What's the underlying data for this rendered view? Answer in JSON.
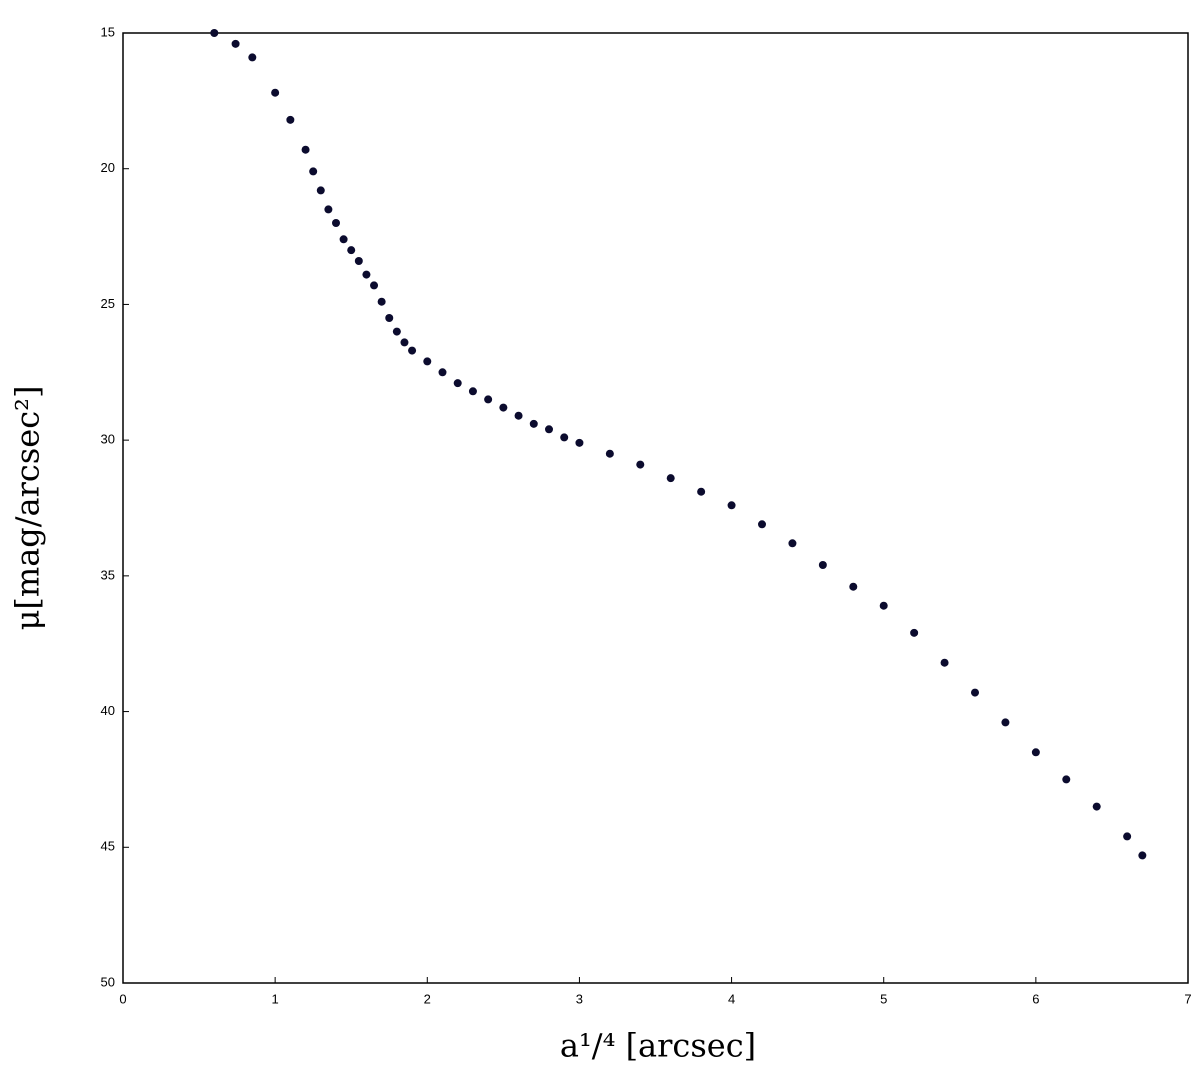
{
  "chart_data": {
    "type": "scatter",
    "xlabel": "a¹/⁴ [arcsec]",
    "ylabel": "μ[mag/arcsec²]",
    "x": [
      0.6,
      0.74,
      0.85,
      1.0,
      1.1,
      1.2,
      1.25,
      1.3,
      1.35,
      1.4,
      1.45,
      1.5,
      1.55,
      1.6,
      1.65,
      1.7,
      1.75,
      1.8,
      1.85,
      1.9,
      2.0,
      2.1,
      2.2,
      2.3,
      2.4,
      2.5,
      2.6,
      2.7,
      2.8,
      2.9,
      3.0,
      3.2,
      3.4,
      3.6,
      3.8,
      4.0,
      4.2,
      4.4,
      4.6,
      4.8,
      5.0,
      5.2,
      5.4,
      5.6,
      5.8,
      6.0,
      6.2,
      6.4,
      6.6,
      6.7
    ],
    "values": [
      15.0,
      15.4,
      15.9,
      17.2,
      18.2,
      19.3,
      20.1,
      20.8,
      21.5,
      22.0,
      22.6,
      23.0,
      23.4,
      23.9,
      24.3,
      24.9,
      25.5,
      26.0,
      26.4,
      26.7,
      27.1,
      27.5,
      27.9,
      28.2,
      28.5,
      28.8,
      29.1,
      29.4,
      29.6,
      29.9,
      30.1,
      30.5,
      30.9,
      31.4,
      31.9,
      32.4,
      33.1,
      33.8,
      34.6,
      35.4,
      36.1,
      37.1,
      38.2,
      39.3,
      40.4,
      41.5,
      42.5,
      43.5,
      44.6,
      45.3
    ],
    "color": "#0b0b2e",
    "xlim": [
      0,
      7
    ],
    "xticks": [
      0,
      1,
      2,
      3,
      4,
      5,
      6,
      7
    ],
    "ylim": [
      15,
      50
    ],
    "yticks": [
      15,
      20,
      25,
      30,
      35,
      40,
      45,
      50
    ],
    "y_inverted": true
  }
}
